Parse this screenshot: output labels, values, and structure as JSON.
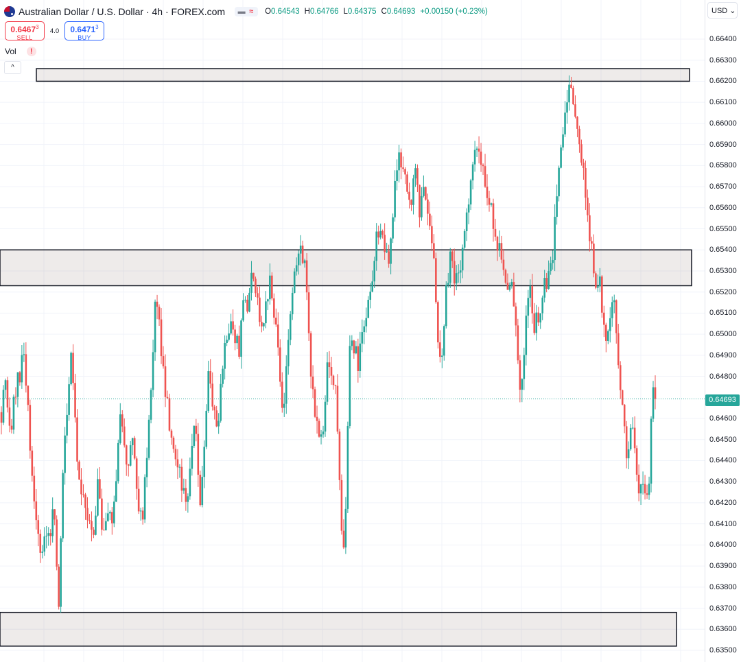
{
  "legend": {
    "title": "Australian Dollar / U.S. Dollar · 4h · FOREX.com",
    "icons": [
      "aud-usd-flag-icon",
      "collapse-dash-icon",
      "wave-icon"
    ],
    "open_label": "O",
    "open": "0.64543",
    "high_label": "H",
    "high": "0.64766",
    "low_label": "L",
    "low": "0.64375",
    "close_label": "C",
    "close": "0.64693",
    "change": "+0.00150 (+0.23%)",
    "value_color": "#089981"
  },
  "trade": {
    "sell_price_main": "0.6467",
    "sell_price_sup": "3",
    "sell_label": "SELL",
    "spread": "4.0",
    "buy_price_main": "0.6471",
    "buy_price_sup": "3",
    "buy_label": "BUY",
    "sell_color": "#f23645",
    "buy_color": "#2962ff"
  },
  "indicator": {
    "name": "Vol",
    "warning": "!",
    "collapse_icon": "chevron-up-icon"
  },
  "axis": {
    "currency": "USD",
    "ticks": [
      "0.66400",
      "0.66300",
      "0.66200",
      "0.66100",
      "0.66000",
      "0.65900",
      "0.65800",
      "0.65700",
      "0.65600",
      "0.65500",
      "0.65400",
      "0.65300",
      "0.65200",
      "0.65100",
      "0.65000",
      "0.64900",
      "0.64800",
      "0.64600",
      "0.64500",
      "0.64400",
      "0.64300",
      "0.64200",
      "0.64100",
      "0.64000",
      "0.63900",
      "0.63800",
      "0.63700",
      "0.63600",
      "0.63500"
    ],
    "last_price": "0.64693"
  },
  "chart_data": {
    "type": "candlestick",
    "symbol": "AUD/USD",
    "interval": "4h",
    "ylim": [
      0.6347,
      0.6657
    ],
    "grid": true,
    "up_color": "#26a69a",
    "down_color": "#ef5350",
    "last_price": 0.64693,
    "zones": [
      {
        "from": 0.662,
        "to": 0.6626
      },
      {
        "from": 0.6523,
        "to": 0.654
      },
      {
        "from": 0.6352,
        "to": 0.6368
      }
    ],
    "close_path": [
      0.6463,
      0.648,
      0.645,
      0.647,
      0.648,
      0.649,
      0.647,
      0.643,
      0.641,
      0.6395,
      0.641,
      0.64,
      0.642,
      0.6372,
      0.6435,
      0.647,
      0.649,
      0.645,
      0.6425,
      0.642,
      0.641,
      0.6402,
      0.643,
      0.6402,
      0.642,
      0.641,
      0.643,
      0.646,
      0.6445,
      0.644,
      0.6455,
      0.642,
      0.641,
      0.644,
      0.647,
      0.652,
      0.65,
      0.648,
      0.646,
      0.645,
      0.644,
      0.643,
      0.642,
      0.644,
      0.646,
      0.642,
      0.644,
      0.648,
      0.647,
      0.645,
      0.648,
      0.6495,
      0.651,
      0.65,
      0.649,
      0.652,
      0.651,
      0.653,
      0.652,
      0.65,
      0.651,
      0.653,
      0.651,
      0.649,
      0.646,
      0.649,
      0.652,
      0.653,
      0.6545,
      0.653,
      0.649,
      0.647,
      0.645,
      0.645,
      0.649,
      0.648,
      0.647,
      0.642,
      0.639,
      0.649,
      0.6495,
      0.6485,
      0.65,
      0.651,
      0.652,
      0.6545,
      0.655,
      0.654,
      0.653,
      0.656,
      0.658,
      0.6585,
      0.6575,
      0.656,
      0.658,
      0.656,
      0.657,
      0.655,
      0.6545,
      0.65,
      0.649,
      0.652,
      0.6535,
      0.6525,
      0.653,
      0.654,
      0.656,
      0.658,
      0.659,
      0.658,
      0.657,
      0.656,
      0.655,
      0.654,
      0.653,
      0.652,
      0.653,
      0.65,
      0.647,
      0.65,
      0.652,
      0.6505,
      0.651,
      0.652,
      0.6525,
      0.653,
      0.656,
      0.659,
      0.66,
      0.6615,
      0.661,
      0.6595,
      0.658,
      0.656,
      0.654,
      0.652,
      0.6525,
      0.65,
      0.65,
      0.652,
      0.649,
      0.647,
      0.644,
      0.646,
      0.644,
      0.6425,
      0.643,
      0.6425,
      0.648,
      0.6469
    ]
  }
}
